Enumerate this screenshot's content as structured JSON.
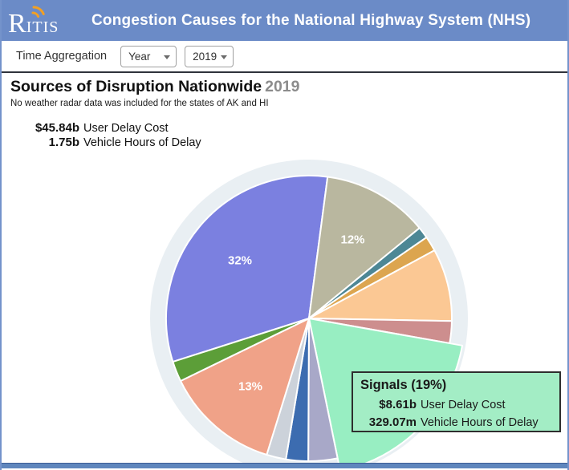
{
  "header": {
    "logo_r": "R",
    "logo_itis": "ITIS",
    "title": "Congestion Causes for the National Highway System (NHS)"
  },
  "toolbar": {
    "label": "Time Aggregation",
    "aggregation_value": "Year",
    "year_value": "2019"
  },
  "report": {
    "title": "Sources of Disruption Nationwide",
    "title_year": "2019",
    "note": "No weather radar data was included for the states of AK and HI",
    "stats": [
      {
        "value": "$45.84b",
        "label": "User Delay Cost"
      },
      {
        "value": "1.75b",
        "label": "Vehicle Hours of Delay"
      }
    ]
  },
  "tooltip": {
    "title": "Signals (19%)",
    "bg_color": "#a3edc5",
    "rows": [
      {
        "value": "$8.61b",
        "label": "User Delay Cost"
      },
      {
        "value": "329.07m",
        "label": "Vehicle Hours of Delay"
      }
    ]
  },
  "chart_data": {
    "type": "pie",
    "title": "Sources of Disruption Nationwide 2019",
    "start_angle_deg": 252.3,
    "radius": 178,
    "explode_radius": 194,
    "halo_radius": 198,
    "halo_color": "#e9eff3",
    "stroke_color": "#ffffff",
    "label_color": "#ffffff",
    "label_radius_factor": 0.63,
    "slices": [
      {
        "name": "slice-purple",
        "percent": 32,
        "color": "#7b80e0",
        "label": "32%"
      },
      {
        "name": "slice-tan",
        "percent": 12,
        "color": "#b9b79f",
        "label": "12%"
      },
      {
        "name": "slice-teal",
        "percent": 1.3,
        "color": "#4d8795"
      },
      {
        "name": "slice-gold",
        "percent": 1.7,
        "color": "#dca54f"
      },
      {
        "name": "slice-peach",
        "percent": 8.2,
        "color": "#fbc894"
      },
      {
        "name": "slice-rosybrown",
        "percent": 2.5,
        "color": "#cd8e8e"
      },
      {
        "name": "slice-signals",
        "percent": 19,
        "color": "#98eec2",
        "exploded": true
      },
      {
        "name": "slice-lavender",
        "percent": 3.3,
        "color": "#a8a8c8"
      },
      {
        "name": "slice-blue",
        "percent": 2.5,
        "color": "#3c6cb0"
      },
      {
        "name": "slice-lightgray",
        "percent": 2.2,
        "color": "#ccd2da"
      },
      {
        "name": "slice-salmon",
        "percent": 13,
        "color": "#f0a288",
        "label": "13%"
      },
      {
        "name": "slice-green",
        "percent": 2.3,
        "color": "#5c9e38"
      }
    ]
  }
}
